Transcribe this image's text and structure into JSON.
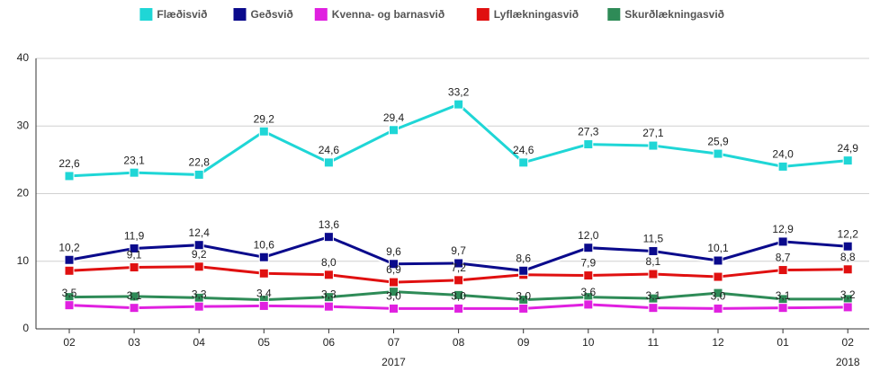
{
  "chart_data": {
    "type": "line",
    "categories": [
      "02",
      "03",
      "04",
      "05",
      "06",
      "07",
      "08",
      "09",
      "10",
      "11",
      "12",
      "01",
      "02"
    ],
    "x_group_labels": [
      {
        "label": "2017",
        "category_index": 5
      },
      {
        "label": "2018",
        "category_index": 12
      }
    ],
    "ylim": [
      0,
      40
    ],
    "yticks": [
      0,
      10,
      20,
      30,
      40
    ],
    "grid": true,
    "legend": "top",
    "series": [
      {
        "name": "Flæðisvið",
        "color": "#1fd6d6",
        "values": [
          22.6,
          23.1,
          22.8,
          29.2,
          24.6,
          29.4,
          33.2,
          24.6,
          27.3,
          27.1,
          25.9,
          24.0,
          24.9
        ],
        "value_labels": [
          "22,6",
          "23,1",
          "22,8",
          "29,2",
          "24,6",
          "29,4",
          "33,2",
          "24,6",
          "27,3",
          "27,1",
          "25,9",
          "24,0",
          "24,9"
        ]
      },
      {
        "name": "Geðsvið",
        "color": "#0a0a8c",
        "values": [
          10.2,
          11.9,
          12.4,
          10.6,
          13.6,
          9.6,
          9.7,
          8.6,
          12.0,
          11.5,
          10.1,
          12.9,
          12.2
        ],
        "value_labels": [
          "10,2",
          "11,9",
          "12,4",
          "10,6",
          "13,6",
          "9,6",
          "9,7",
          "8,6",
          "12,0",
          "11,5",
          "10,1",
          "12,9",
          "12,2"
        ]
      },
      {
        "name": "Kvenna- og barnasvið",
        "color": "#e020e0",
        "values": [
          3.5,
          3.1,
          3.3,
          3.4,
          3.3,
          3.0,
          3.0,
          3.0,
          3.6,
          3.1,
          3.0,
          3.1,
          3.2
        ],
        "value_labels": [
          "3,5",
          "3,1",
          "3,3",
          "3,4",
          "3,3",
          "3,0",
          "3,0",
          "3,0",
          "3,6",
          "3,1",
          "3,0",
          "3,1",
          "3,2"
        ]
      },
      {
        "name": "Lyflækningasvið",
        "color": "#e01010",
        "values": [
          8.6,
          9.1,
          9.2,
          8.2,
          8.0,
          6.9,
          7.2,
          8.0,
          7.9,
          8.1,
          7.7,
          8.7,
          8.8
        ],
        "value_labels": [
          null,
          "9,1",
          "9,2",
          null,
          "8,0",
          "6,9",
          "7,2",
          null,
          "7,9",
          "8,1",
          null,
          "8,7",
          "8,8"
        ]
      },
      {
        "name": "Skurðlækningasvið",
        "color": "#2e8b57",
        "values": [
          4.7,
          4.8,
          4.6,
          4.3,
          4.7,
          5.5,
          5.0,
          4.3,
          4.7,
          4.5,
          5.3,
          4.4,
          4.4
        ]
      }
    ]
  }
}
